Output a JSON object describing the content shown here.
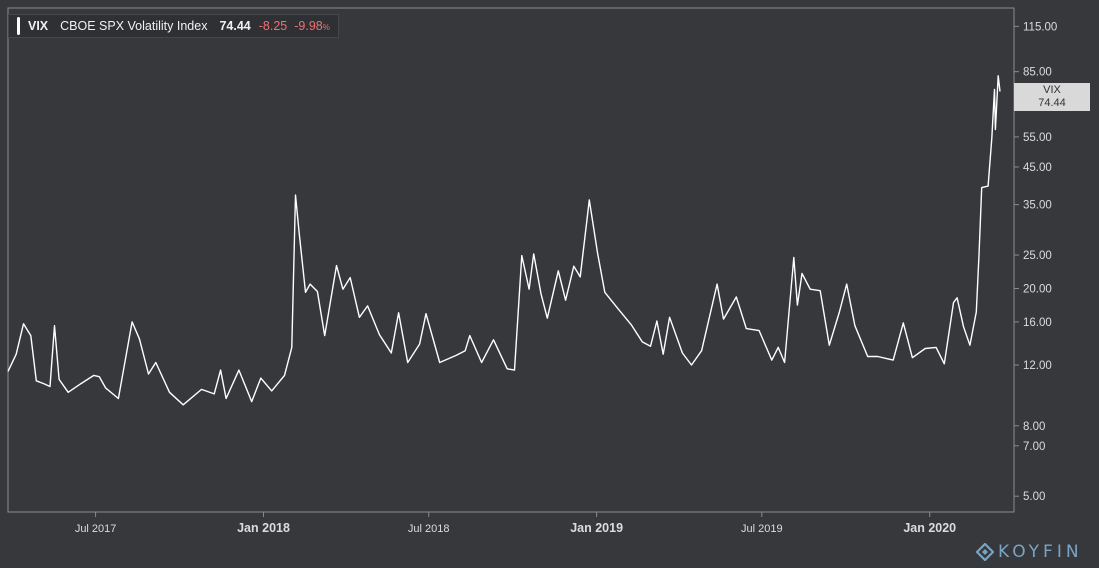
{
  "legend": {
    "symbol": "VIX",
    "name": "CBOE SPX Volatility Index",
    "value": "74.44",
    "change": "-8.25",
    "change_pct": "-9.98",
    "pct_sign": "%"
  },
  "price_tag": {
    "symbol": "VIX",
    "value": "74.44"
  },
  "brand": {
    "name": "KOYFIN"
  },
  "colors": {
    "background": "#37383b",
    "line": "#ffffff",
    "negative": "#ef7074",
    "accent": "#7aa4c6"
  },
  "chart_data": {
    "type": "line",
    "title": "",
    "xlabel": "",
    "ylabel": "",
    "y_scale": "log",
    "ylim": [
      4.5,
      130
    ],
    "xlim": [
      "2017-03-27",
      "2020-03-18"
    ],
    "grid": false,
    "y_ticks": [
      "5.00",
      "7.00",
      "8.00",
      "12.00",
      "16.00",
      "20.00",
      "25.00",
      "35.00",
      "45.00",
      "55.00",
      "85.00",
      "115.00"
    ],
    "x_ticks": [
      {
        "label": "Jul 2017",
        "date": "2017-07-01",
        "bold": false
      },
      {
        "label": "Jan 2018",
        "date": "2018-01-01",
        "bold": true
      },
      {
        "label": "Jul 2018",
        "date": "2018-07-01",
        "bold": false
      },
      {
        "label": "Jan 2019",
        "date": "2019-01-01",
        "bold": true
      },
      {
        "label": "Jul 2019",
        "date": "2019-07-01",
        "bold": false
      },
      {
        "label": "Jan 2020",
        "date": "2020-01-01",
        "bold": true
      }
    ],
    "series": [
      {
        "name": "VIX",
        "points": [
          [
            "2017-03-27",
            11.5
          ],
          [
            "2017-04-05",
            12.9
          ],
          [
            "2017-04-13",
            15.8
          ],
          [
            "2017-04-21",
            14.6
          ],
          [
            "2017-04-27",
            10.8
          ],
          [
            "2017-05-05",
            10.6
          ],
          [
            "2017-05-12",
            10.4
          ],
          [
            "2017-05-17",
            15.6
          ],
          [
            "2017-05-22",
            10.9
          ],
          [
            "2017-06-01",
            10.0
          ],
          [
            "2017-06-15",
            10.6
          ],
          [
            "2017-06-29",
            11.2
          ],
          [
            "2017-07-05",
            11.1
          ],
          [
            "2017-07-12",
            10.3
          ],
          [
            "2017-07-26",
            9.6
          ],
          [
            "2017-08-10",
            16.0
          ],
          [
            "2017-08-18",
            14.3
          ],
          [
            "2017-08-28",
            11.3
          ],
          [
            "2017-09-05",
            12.2
          ],
          [
            "2017-09-20",
            10.0
          ],
          [
            "2017-10-05",
            9.2
          ],
          [
            "2017-10-25",
            10.2
          ],
          [
            "2017-11-08",
            9.9
          ],
          [
            "2017-11-15",
            11.6
          ],
          [
            "2017-11-21",
            9.6
          ],
          [
            "2017-12-05",
            11.6
          ],
          [
            "2017-12-19",
            9.4
          ],
          [
            "2017-12-29",
            11.0
          ],
          [
            "2018-01-10",
            10.1
          ],
          [
            "2018-01-24",
            11.2
          ],
          [
            "2018-02-01",
            13.5
          ],
          [
            "2018-02-05",
            37.3
          ],
          [
            "2018-02-09",
            29.1
          ],
          [
            "2018-02-16",
            19.5
          ],
          [
            "2018-02-21",
            20.6
          ],
          [
            "2018-03-01",
            19.6
          ],
          [
            "2018-03-09",
            14.6
          ],
          [
            "2018-03-22",
            23.3
          ],
          [
            "2018-03-29",
            19.9
          ],
          [
            "2018-04-06",
            21.5
          ],
          [
            "2018-04-16",
            16.5
          ],
          [
            "2018-04-25",
            17.8
          ],
          [
            "2018-05-08",
            14.7
          ],
          [
            "2018-05-21",
            13.0
          ],
          [
            "2018-05-29",
            17.0
          ],
          [
            "2018-06-08",
            12.2
          ],
          [
            "2018-06-21",
            13.8
          ],
          [
            "2018-06-28",
            16.9
          ],
          [
            "2018-07-13",
            12.2
          ],
          [
            "2018-07-31",
            12.8
          ],
          [
            "2018-08-10",
            13.2
          ],
          [
            "2018-08-15",
            14.6
          ],
          [
            "2018-08-28",
            12.2
          ],
          [
            "2018-09-10",
            14.2
          ],
          [
            "2018-09-25",
            11.7
          ],
          [
            "2018-10-03",
            11.6
          ],
          [
            "2018-10-11",
            24.9
          ],
          [
            "2018-10-19",
            19.9
          ],
          [
            "2018-10-24",
            25.2
          ],
          [
            "2018-11-01",
            19.3
          ],
          [
            "2018-11-08",
            16.4
          ],
          [
            "2018-11-20",
            22.5
          ],
          [
            "2018-11-28",
            18.5
          ],
          [
            "2018-12-07",
            23.2
          ],
          [
            "2018-12-14",
            21.6
          ],
          [
            "2018-12-24",
            36.1
          ],
          [
            "2019-01-02",
            25.4
          ],
          [
            "2019-01-10",
            19.5
          ],
          [
            "2019-01-25",
            17.4
          ],
          [
            "2019-02-08",
            15.7
          ],
          [
            "2019-02-20",
            14.0
          ],
          [
            "2019-03-01",
            13.6
          ],
          [
            "2019-03-08",
            16.1
          ],
          [
            "2019-03-15",
            12.9
          ],
          [
            "2019-03-22",
            16.5
          ],
          [
            "2019-04-05",
            13.0
          ],
          [
            "2019-04-15",
            12.0
          ],
          [
            "2019-04-26",
            13.2
          ],
          [
            "2019-05-13",
            20.6
          ],
          [
            "2019-05-20",
            16.3
          ],
          [
            "2019-06-03",
            18.9
          ],
          [
            "2019-06-14",
            15.3
          ],
          [
            "2019-06-28",
            15.1
          ],
          [
            "2019-07-12",
            12.4
          ],
          [
            "2019-07-19",
            13.5
          ],
          [
            "2019-07-26",
            12.2
          ],
          [
            "2019-08-05",
            24.6
          ],
          [
            "2019-08-09",
            17.9
          ],
          [
            "2019-08-14",
            22.1
          ],
          [
            "2019-08-23",
            19.9
          ],
          [
            "2019-09-03",
            19.7
          ],
          [
            "2019-09-13",
            13.7
          ],
          [
            "2019-09-24",
            17.1
          ],
          [
            "2019-10-02",
            20.6
          ],
          [
            "2019-10-11",
            15.6
          ],
          [
            "2019-10-25",
            12.7
          ],
          [
            "2019-11-05",
            12.7
          ],
          [
            "2019-11-22",
            12.4
          ],
          [
            "2019-12-03",
            15.9
          ],
          [
            "2019-12-13",
            12.6
          ],
          [
            "2019-12-27",
            13.4
          ],
          [
            "2020-01-08",
            13.5
          ],
          [
            "2020-01-17",
            12.1
          ],
          [
            "2020-01-27",
            18.2
          ],
          [
            "2020-01-31",
            18.8
          ],
          [
            "2020-02-07",
            15.5
          ],
          [
            "2020-02-14",
            13.7
          ],
          [
            "2020-02-21",
            17.1
          ],
          [
            "2020-02-24",
            25.0
          ],
          [
            "2020-02-27",
            39.2
          ],
          [
            "2020-03-05",
            39.6
          ],
          [
            "2020-03-09",
            54.5
          ],
          [
            "2020-03-12",
            75.5
          ],
          [
            "2020-03-13",
            57.8
          ],
          [
            "2020-03-16",
            82.7
          ],
          [
            "2020-03-18",
            74.44
          ]
        ]
      }
    ]
  }
}
